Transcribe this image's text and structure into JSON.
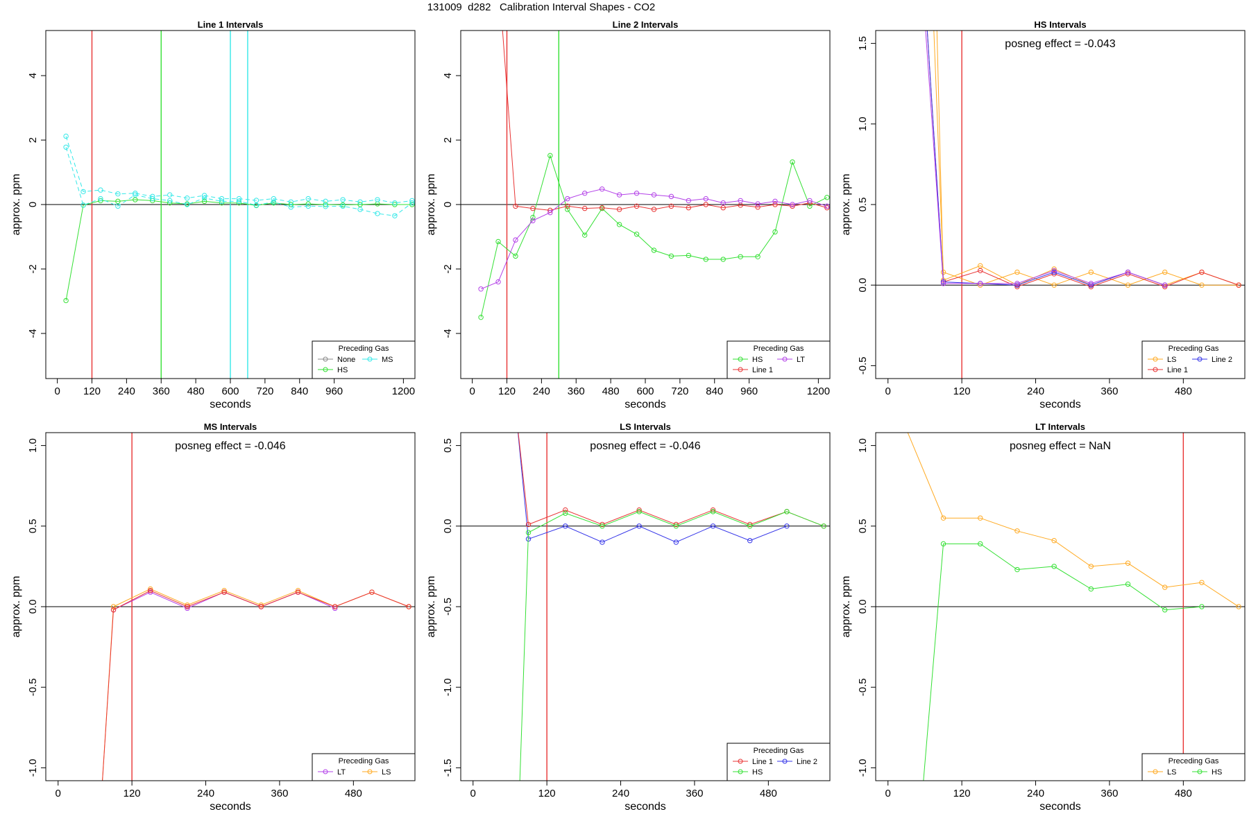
{
  "page_title": "131009  d282   Calibration Interval Shapes - CO2",
  "colors": {
    "None": "#888888",
    "HS": "#33e033",
    "MS": "#33e8e8",
    "Line 1": "#e83333",
    "Line 2": "#3333e8",
    "LT": "#b340e8",
    "LS": "#ffaa22",
    "zero": "#000000"
  },
  "chart_data": [
    {
      "type": "line",
      "title": "Line 1 Intervals",
      "xlabel": "seconds",
      "ylabel": "approx. ppm",
      "xlim": [
        -40,
        1240
      ],
      "ylim": [
        -5.4,
        5.4
      ],
      "xticks": [
        0,
        120,
        240,
        360,
        480,
        600,
        720,
        840,
        960,
        1200
      ],
      "yticks": [
        -4,
        -2,
        0,
        2,
        4
      ],
      "tick_decimals": 0,
      "vlines": [
        {
          "x": 120,
          "color": "Line 1"
        },
        {
          "x": 360,
          "color": "HS"
        },
        {
          "x": 600,
          "color": "MS"
        },
        {
          "x": 660,
          "color": "MS"
        }
      ],
      "posneg": "",
      "legend": {
        "title": "Preceding Gas",
        "position": "bottom-right",
        "entries": [
          "None",
          "MS",
          "HS"
        ],
        "cols": 2
      },
      "series": [
        {
          "color": "HS",
          "dash": false,
          "x": [
            30,
            90,
            150,
            210,
            270,
            330,
            390,
            450,
            510,
            570,
            630,
            690,
            750,
            810,
            870,
            930,
            990,
            1050,
            1110,
            1170,
            1230
          ],
          "y": [
            -2.98,
            -0.02,
            0.12,
            0.1,
            0.15,
            0.12,
            0.05,
            0.02,
            0.1,
            0.05,
            0.05,
            -0.03,
            0.05,
            0.0,
            0.02,
            0.0,
            -0.01,
            0.0,
            0.02,
            0.0,
            0.0
          ]
        },
        {
          "color": "MS",
          "dash": true,
          "x": [
            30,
            90,
            150,
            210,
            270,
            330,
            390,
            450,
            510,
            570,
            630,
            690,
            750,
            810,
            870,
            930,
            990,
            1050,
            1110,
            1170,
            1230
          ],
          "y": [
            2.12,
            0.4,
            0.45,
            0.33,
            0.35,
            0.25,
            0.3,
            0.2,
            0.28,
            0.18,
            0.18,
            0.13,
            0.18,
            0.08,
            0.18,
            0.1,
            0.15,
            0.08,
            0.15,
            0.05,
            0.12
          ]
        },
        {
          "color": "MS",
          "dash": true,
          "x": [
            30,
            90,
            150,
            210,
            270,
            330,
            390,
            450,
            510,
            570,
            630,
            690,
            750,
            810,
            870,
            930,
            990,
            1050,
            1110,
            1170,
            1230
          ],
          "y": [
            1.78,
            -0.02,
            0.18,
            -0.05,
            0.3,
            0.18,
            0.12,
            0.0,
            0.2,
            0.1,
            0.1,
            -0.02,
            0.08,
            -0.08,
            -0.05,
            -0.06,
            -0.05,
            -0.15,
            -0.28,
            -0.35,
            0.05
          ]
        }
      ]
    },
    {
      "type": "line",
      "title": "Line 2 Intervals",
      "xlabel": "seconds",
      "ylabel": "approx. ppm",
      "xlim": [
        -40,
        1240
      ],
      "ylim": [
        -5.4,
        5.4
      ],
      "xticks": [
        0,
        120,
        240,
        360,
        480,
        600,
        720,
        840,
        960,
        1200
      ],
      "yticks": [
        -4,
        -2,
        0,
        2,
        4
      ],
      "tick_decimals": 0,
      "vlines": [
        {
          "x": 120,
          "color": "Line 1"
        },
        {
          "x": 300,
          "color": "HS"
        }
      ],
      "posneg": "",
      "legend": {
        "title": "Preceding Gas",
        "position": "bottom-right",
        "entries": [
          "HS",
          "LT",
          "Line 1"
        ],
        "cols": 2
      },
      "series": [
        {
          "color": "HS",
          "dash": false,
          "x": [
            30,
            90,
            150,
            210,
            270,
            330,
            390,
            450,
            510,
            570,
            630,
            690,
            750,
            810,
            870,
            930,
            990,
            1050,
            1110,
            1170,
            1230
          ],
          "y": [
            -3.5,
            -1.15,
            -1.6,
            -0.4,
            1.52,
            -0.15,
            -0.95,
            -0.12,
            -0.62,
            -0.92,
            -1.42,
            -1.6,
            -1.58,
            -1.7,
            -1.7,
            -1.62,
            -1.62,
            -0.85,
            1.32,
            -0.05,
            0.22
          ]
        },
        {
          "color": "Line 1",
          "dash": false,
          "x": [
            100,
            150,
            210,
            270,
            330,
            390,
            450,
            510,
            570,
            630,
            690,
            750,
            810,
            870,
            930,
            990,
            1050,
            1110,
            1170,
            1230
          ],
          "y": [
            6.0,
            -0.05,
            -0.12,
            -0.18,
            -0.05,
            -0.12,
            -0.1,
            -0.15,
            -0.05,
            -0.15,
            -0.05,
            -0.1,
            0.0,
            -0.1,
            -0.02,
            -0.08,
            0.0,
            -0.05,
            0.05,
            -0.1
          ]
        },
        {
          "color": "LT",
          "dash": false,
          "x": [
            30,
            90,
            150,
            210,
            270,
            330,
            390,
            450,
            510,
            570,
            630,
            690,
            750,
            810,
            870,
            930,
            990,
            1050,
            1110,
            1170,
            1230
          ],
          "y": [
            -2.62,
            -2.4,
            -1.1,
            -0.5,
            -0.25,
            0.18,
            0.35,
            0.48,
            0.3,
            0.35,
            0.3,
            0.25,
            0.12,
            0.18,
            0.05,
            0.12,
            0.02,
            0.1,
            0.0,
            0.12,
            -0.05
          ]
        }
      ]
    },
    {
      "type": "line",
      "title": "HS Intervals",
      "xlabel": "seconds",
      "ylabel": "approx. ppm",
      "xlim": [
        -20,
        580
      ],
      "ylim": [
        -0.58,
        1.58
      ],
      "xticks": [
        0,
        120,
        240,
        360,
        480
      ],
      "yticks": [
        -0.5,
        0.0,
        0.5,
        1.0,
        1.5
      ],
      "tick_decimals": 1,
      "vlines": [
        {
          "x": 120,
          "color": "Line 1"
        }
      ],
      "posneg": "posneg effect = -0.043",
      "legend": {
        "title": "Preceding Gas",
        "position": "bottom-right",
        "entries": [
          "LS",
          "Line 2",
          "Line 1"
        ],
        "cols": 2
      },
      "series": [
        {
          "color": "LS",
          "dash": false,
          "x": [
            60,
            90,
            150,
            210,
            270,
            330,
            390,
            450,
            510,
            570
          ],
          "y": [
            3.0,
            0.08,
            0.0,
            0.08,
            0.0,
            0.08,
            0.0,
            0.08,
            0.0,
            0.0
          ]
        },
        {
          "color": "LS",
          "dash": false,
          "x": [
            70,
            90,
            150,
            210,
            270,
            330,
            390,
            450,
            510,
            570
          ],
          "y": [
            3.0,
            0.03,
            0.12,
            0.0,
            0.1,
            0.0,
            0.08,
            0.0,
            0.08,
            0.0
          ]
        },
        {
          "color": "Line 1",
          "dash": false,
          "x": [
            40,
            90,
            150,
            210,
            270,
            330,
            390,
            450,
            510,
            570
          ],
          "y": [
            3.0,
            0.02,
            0.09,
            -0.01,
            0.07,
            -0.01,
            0.07,
            -0.01,
            0.08,
            0.0
          ]
        },
        {
          "color": "Line 2",
          "dash": false,
          "x": [
            40,
            90,
            150,
            210,
            270,
            330,
            390,
            450
          ],
          "y": [
            3.0,
            0.02,
            0.01,
            0.0,
            0.08,
            0.0,
            0.08,
            0.0
          ]
        },
        {
          "color": "LT",
          "dash": false,
          "x": [
            35,
            90,
            150,
            210,
            270,
            330,
            390,
            450
          ],
          "y": [
            3.0,
            0.01,
            0.01,
            0.01,
            0.09,
            0.01,
            0.08,
            0.0
          ]
        }
      ]
    },
    {
      "type": "line",
      "title": "MS Intervals",
      "xlabel": "seconds",
      "ylabel": "approx. ppm",
      "xlim": [
        -20,
        580
      ],
      "ylim": [
        -1.08,
        1.08
      ],
      "xticks": [
        0,
        120,
        240,
        360,
        480
      ],
      "yticks": [
        -1.0,
        -0.5,
        0.0,
        0.5,
        1.0
      ],
      "tick_decimals": 1,
      "vlines": [
        {
          "x": 120,
          "color": "Line 1"
        }
      ],
      "posneg": "posneg effect = -0.046",
      "legend": {
        "title": "Preceding Gas",
        "position": "bottom-right",
        "entries": [
          "LT",
          "LS"
        ],
        "cols": 2
      },
      "series": [
        {
          "color": "LS",
          "dash": false,
          "x": [
            70,
            90,
            150,
            210,
            270,
            330,
            390,
            450,
            510,
            570
          ],
          "y": [
            -1.2,
            0.0,
            0.11,
            0.01,
            0.1,
            0.01,
            0.1,
            0.0,
            0.09,
            0.0
          ]
        },
        {
          "color": "LT",
          "dash": false,
          "x": [
            90,
            150,
            210,
            270,
            330,
            390,
            450
          ],
          "y": [
            -0.02,
            0.09,
            -0.01,
            0.09,
            0.0,
            0.09,
            -0.01
          ]
        },
        {
          "color": "Line 1",
          "dash": false,
          "x": [
            70,
            90,
            150,
            210,
            270,
            330,
            390,
            450,
            510,
            570
          ],
          "y": [
            -1.2,
            -0.02,
            0.1,
            0.0,
            0.09,
            0.0,
            0.09,
            0.0,
            0.09,
            0.0
          ]
        }
      ]
    },
    {
      "type": "line",
      "title": "LS Intervals",
      "xlabel": "seconds",
      "ylabel": "approx. ppm",
      "xlim": [
        -20,
        580
      ],
      "ylim": [
        -1.58,
        0.58
      ],
      "xticks": [
        0,
        120,
        240,
        360,
        480
      ],
      "yticks": [
        -1.5,
        -1.0,
        -0.5,
        0.0,
        0.5
      ],
      "tick_decimals": 1,
      "vlines": [
        {
          "x": 120,
          "color": "Line 1"
        }
      ],
      "posneg": "posneg effect = -0.046",
      "legend": {
        "title": "Preceding Gas",
        "position": "bottom-right",
        "entries": [
          "Line 1",
          "Line 2",
          "HS"
        ],
        "cols": 2
      },
      "series": [
        {
          "color": "Line 2",
          "dash": false,
          "x": [
            70,
            90,
            150,
            210,
            270,
            330,
            390,
            450,
            510
          ],
          "y": [
            0.7,
            -0.08,
            0.0,
            -0.1,
            0.0,
            -0.1,
            0.0,
            -0.09,
            0.0
          ]
        },
        {
          "color": "Line 1",
          "dash": false,
          "x": [
            70,
            90,
            150,
            210,
            270,
            330,
            390,
            450,
            510,
            570
          ],
          "y": [
            0.7,
            0.01,
            0.1,
            0.01,
            0.1,
            0.01,
            0.1,
            0.01,
            0.09,
            0.0
          ]
        },
        {
          "color": "HS",
          "dash": false,
          "x": [
            75,
            90,
            150,
            210,
            270,
            330,
            390,
            450,
            510,
            570
          ],
          "y": [
            -1.7,
            -0.04,
            0.08,
            0.0,
            0.09,
            0.0,
            0.09,
            0.0,
            0.09,
            0.0
          ]
        }
      ]
    },
    {
      "type": "line",
      "title": "LT Intervals",
      "xlabel": "seconds",
      "ylabel": "approx. ppm",
      "xlim": [
        -20,
        580
      ],
      "ylim": [
        -1.08,
        1.08
      ],
      "xticks": [
        0,
        120,
        240,
        360,
        480
      ],
      "yticks": [
        -1.0,
        -0.5,
        0.0,
        0.5,
        1.0
      ],
      "tick_decimals": 1,
      "vlines": [
        {
          "x": 480,
          "color": "Line 1"
        }
      ],
      "posneg": "posneg effect = NaN",
      "legend": {
        "title": "Preceding Gas",
        "position": "bottom-right",
        "entries": [
          "LS",
          "HS"
        ],
        "cols": 2
      },
      "series": [
        {
          "color": "LS",
          "dash": false,
          "x": [
            30,
            90,
            150,
            210,
            270,
            330,
            390,
            450,
            510,
            570
          ],
          "y": [
            1.1,
            0.55,
            0.55,
            0.47,
            0.41,
            0.25,
            0.27,
            0.12,
            0.15,
            0.0
          ]
        },
        {
          "color": "HS",
          "dash": false,
          "x": [
            55,
            90,
            150,
            210,
            270,
            330,
            390,
            450,
            510
          ],
          "y": [
            -1.2,
            0.39,
            0.39,
            0.23,
            0.25,
            0.11,
            0.14,
            -0.02,
            0.0
          ]
        }
      ]
    }
  ]
}
